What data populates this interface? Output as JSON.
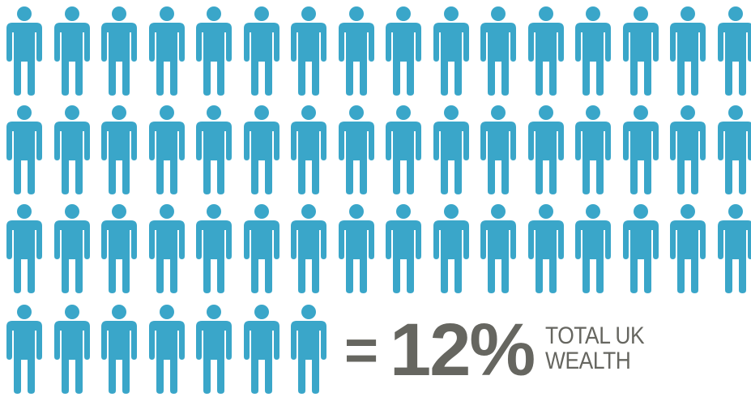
{
  "infographic": {
    "figure_count": 55,
    "figure_color": "#3aa6c9",
    "figure_icon": "person-icon",
    "equals": "=",
    "value": "12%",
    "caption_line1": "TOTAL UK",
    "caption_line2": "WEALTH",
    "text_color": "#666660"
  }
}
